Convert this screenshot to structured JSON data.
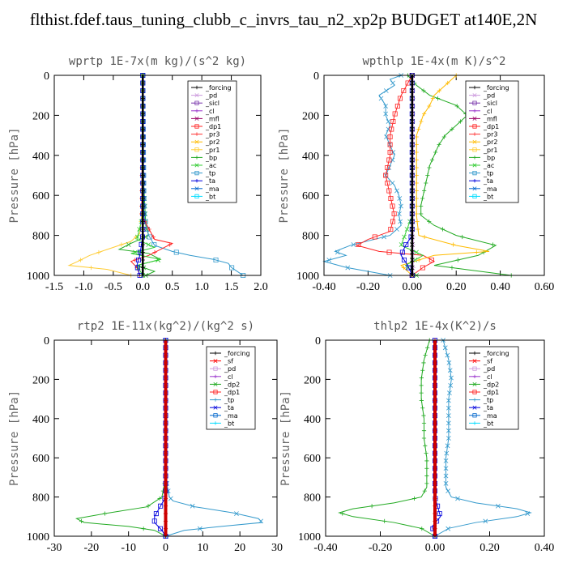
{
  "title": "flthist.fdef.taus_tuning_clubb_c_invrs_tau_n2_xp2p  BUDGET at140E,2N",
  "colors": {
    "forcing": "#000000",
    "sf": "#ff0000",
    "pd": "#cc99dd",
    "sicl": "#7733aa",
    "cl": "#9933cc",
    "mfl": "#990066",
    "dp1": "#ff2222",
    "dp2": "#22aa22",
    "pr3": "#ff3333",
    "pr2": "#ffbb00",
    "pr1": "#ffcc33",
    "bp": "#22aa22",
    "ac": "#33cc33",
    "tp": "#3399cc",
    "ta": "#0000dd",
    "ma": "#0066cc",
    "bt": "#00ddff"
  },
  "chart_data": [
    {
      "type": "line",
      "title": "wprtp  1E-7x(m kg)/(s^2 kg)",
      "ylabel": "Pressure [hPa]",
      "xlim": [
        -1.5,
        2.0
      ],
      "ylim": [
        1000,
        0
      ],
      "xticks": [
        "-1.5",
        "-1.0",
        "-0.5",
        "0.0",
        "0.5",
        "1.0",
        "1.5",
        "2.0"
      ],
      "xtick_values": [
        -1.5,
        -1.0,
        -0.5,
        0.0,
        0.5,
        1.0,
        1.5,
        2.0
      ],
      "yticks": [
        "0",
        "200",
        "400",
        "600",
        "800",
        "1000"
      ],
      "ytick_values": [
        0,
        200,
        400,
        600,
        800,
        1000
      ],
      "legend": [
        "_forcing",
        "_pd",
        "_sicl",
        "_cl",
        "_mfl",
        "_dp1",
        "_pr3",
        "_pr2",
        "_pr1",
        "_bp",
        "_ac",
        "_tp",
        "_ta",
        "_ma",
        "_bt"
      ],
      "series": [
        {
          "name": "_pr1",
          "key": "pr1",
          "p": [
            0,
            400,
            700,
            790,
            830,
            870,
            900,
            930,
            950,
            970,
            1000
          ],
          "v": [
            0,
            0,
            -0.02,
            -0.05,
            -0.2,
            -0.6,
            -0.9,
            -1.1,
            -1.25,
            -0.6,
            -0.2
          ]
        },
        {
          "name": "_bp",
          "key": "bp",
          "p": [
            0,
            500,
            750,
            800,
            840,
            870,
            890,
            920,
            950,
            980,
            1000
          ],
          "v": [
            0,
            0.01,
            0.05,
            0.1,
            -0.2,
            -0.4,
            0.1,
            0.3,
            -0.1,
            0.2,
            0.05
          ]
        },
        {
          "name": "_tp",
          "key": "tp",
          "p": [
            0,
            700,
            800,
            850,
            880,
            900,
            920,
            940,
            960,
            980,
            1000
          ],
          "v": [
            0,
            0.02,
            0.1,
            0.2,
            0.5,
            0.8,
            1.2,
            1.45,
            1.5,
            1.6,
            1.7
          ]
        },
        {
          "name": "_dp1",
          "key": "dp1",
          "p": [
            0,
            700,
            820,
            840,
            870,
            900,
            930,
            960,
            1000
          ],
          "v": [
            0,
            -0.02,
            0.2,
            0.5,
            0.3,
            0.1,
            -0.2,
            -0.1,
            -0.05
          ]
        },
        {
          "name": "_ac",
          "key": "ac",
          "p": [
            0,
            700,
            820,
            860,
            890,
            920,
            950,
            1000
          ],
          "v": [
            0,
            0,
            -0.1,
            0.2,
            -0.2,
            0.3,
            -0.1,
            0
          ]
        },
        {
          "name": "_ta",
          "key": "ta",
          "p": [
            0,
            800,
            900,
            950,
            1000
          ],
          "v": [
            0,
            0,
            -0.05,
            -0.1,
            -0.05
          ]
        },
        {
          "name": "_forcing",
          "key": "forcing",
          "p": [
            0,
            1000
          ],
          "v": [
            0,
            0
          ]
        }
      ]
    },
    {
      "type": "line",
      "title": "wpthlp  1E-4x(m K)/s^2",
      "ylabel": "Pressure [hPa]",
      "xlim": [
        -0.4,
        0.6
      ],
      "ylim": [
        1000,
        0
      ],
      "xticks": [
        "-0.40",
        "-0.20",
        "0.00",
        "0.20",
        "0.40",
        "0.60"
      ],
      "xtick_values": [
        -0.4,
        -0.2,
        0.0,
        0.2,
        0.4,
        0.6
      ],
      "yticks": [
        "0",
        "200",
        "400",
        "600",
        "800",
        "1000"
      ],
      "ytick_values": [
        0,
        200,
        400,
        600,
        800,
        1000
      ],
      "legend": [
        "_forcing",
        "_pd",
        "_sicl",
        "_cl",
        "_mfl",
        "_dp1",
        "_pr3",
        "_pr2",
        "_pr1",
        "_bp",
        "_ac",
        "_tp",
        "_ta",
        "_ma",
        "_bt"
      ],
      "series": [
        {
          "name": "_bp",
          "key": "bp",
          "p": [
            0,
            50,
            100,
            150,
            200,
            250,
            300,
            350,
            400,
            450,
            500,
            550,
            600,
            650,
            700,
            750,
            800,
            850,
            900,
            950,
            1000
          ],
          "v": [
            -0.02,
            0.02,
            0.08,
            0.2,
            0.25,
            0.2,
            0.15,
            0.12,
            0.1,
            0.08,
            0.07,
            0.06,
            0.05,
            0.04,
            0.04,
            0.1,
            0.2,
            0.38,
            0.3,
            0.1,
            0.45
          ]
        },
        {
          "name": "_tp",
          "key": "tp",
          "p": [
            0,
            20,
            50,
            100,
            150,
            200,
            250,
            300,
            350,
            400,
            450,
            500,
            550,
            600,
            650,
            700,
            750,
            800,
            850,
            880,
            900,
            930,
            960,
            1000
          ],
          "v": [
            -0.05,
            -0.1,
            -0.08,
            -0.15,
            -0.12,
            -0.12,
            -0.1,
            -0.12,
            -0.1,
            -0.08,
            -0.1,
            -0.12,
            -0.08,
            -0.06,
            -0.05,
            -0.06,
            -0.05,
            -0.1,
            -0.28,
            -0.35,
            -0.3,
            -0.4,
            -0.3,
            -0.1
          ]
        },
        {
          "name": "_dp1",
          "key": "dp1",
          "p": [
            0,
            100,
            200,
            300,
            400,
            500,
            600,
            700,
            780,
            820,
            850,
            880,
            900,
            930,
            960,
            1000
          ],
          "v": [
            0,
            -0.05,
            -0.08,
            -0.1,
            -0.1,
            -0.12,
            -0.1,
            -0.08,
            -0.1,
            -0.2,
            -0.25,
            -0.15,
            0.05,
            0.1,
            0.05,
            0
          ]
        },
        {
          "name": "_pr2",
          "key": "pr2",
          "p": [
            0,
            50,
            100,
            150,
            200,
            300,
            500,
            700,
            800,
            850,
            880,
            900,
            950,
            1000
          ],
          "v": [
            0.2,
            0.15,
            0.1,
            0.08,
            0.05,
            0.02,
            0.02,
            0.02,
            0.03,
            0.2,
            0.35,
            0.1,
            -0.05,
            0
          ]
        },
        {
          "name": "_ac",
          "key": "ac",
          "p": [
            0,
            700,
            850,
            900,
            950,
            1000
          ],
          "v": [
            0,
            0,
            -0.05,
            0.05,
            -0.03,
            0.02
          ]
        },
        {
          "name": "_ta",
          "key": "ta",
          "p": [
            0,
            800,
            850,
            900,
            950,
            1000
          ],
          "v": [
            0,
            0,
            -0.03,
            -0.05,
            -0.02,
            0
          ]
        },
        {
          "name": "_pd",
          "key": "pd",
          "p": [
            0,
            1000
          ],
          "v": [
            0.005,
            0.005
          ]
        },
        {
          "name": "_forcing",
          "key": "forcing",
          "p": [
            0,
            1000
          ],
          "v": [
            0,
            0
          ]
        }
      ]
    },
    {
      "type": "line",
      "title": "rtp2  1E-11x(kg^2)/(kg^2 s)",
      "ylabel": "Pressure [hPa]",
      "xlim": [
        -30,
        30
      ],
      "ylim": [
        1000,
        0
      ],
      "xticks": [
        "-30",
        "-20",
        "-10",
        "0",
        "10",
        "20",
        "30"
      ],
      "xtick_values": [
        -30,
        -20,
        -10,
        0,
        10,
        20,
        30
      ],
      "yticks": [
        "0",
        "200",
        "400",
        "600",
        "800",
        "1000"
      ],
      "ytick_values": [
        0,
        200,
        400,
        600,
        800,
        1000
      ],
      "legend": [
        "_forcing",
        "_sf",
        "_pd",
        "_cl",
        "_dp2",
        "_dp1",
        "_tp",
        "_ta",
        "_ma",
        "_bt"
      ],
      "series": [
        {
          "name": "_dp2",
          "key": "dp2",
          "p": [
            0,
            700,
            800,
            850,
            880,
            910,
            930,
            950,
            970,
            1000
          ],
          "v": [
            0,
            0,
            -1,
            -5,
            -15,
            -24,
            -22,
            -10,
            -3,
            0
          ]
        },
        {
          "name": "_tp",
          "key": "tp",
          "p": [
            0,
            700,
            800,
            820,
            850,
            880,
            910,
            930,
            950,
            970,
            1000
          ],
          "v": [
            0,
            0,
            1,
            2,
            8,
            18,
            25,
            26,
            15,
            5,
            0
          ]
        },
        {
          "name": "_ta",
          "key": "ta",
          "p": [
            0,
            800,
            900,
            930,
            950,
            970,
            1000
          ],
          "v": [
            0,
            0,
            -3,
            -3,
            -2,
            -1,
            0
          ]
        },
        {
          "name": "_forcing",
          "key": "forcing",
          "p": [
            0,
            1000
          ],
          "v": [
            0,
            0
          ]
        }
      ]
    },
    {
      "type": "line",
      "title": "thlp2  1E-4x(K^2)/s",
      "ylabel": "Pressure [hPa]",
      "xlim": [
        -0.4,
        0.4
      ],
      "ylim": [
        1000,
        0
      ],
      "xticks": [
        "-0.40",
        "-0.20",
        "0.00",
        "0.20",
        "0.40"
      ],
      "xtick_values": [
        -0.4,
        -0.2,
        0.0,
        0.2,
        0.4
      ],
      "yticks": [
        "0",
        "200",
        "400",
        "600",
        "800",
        "1000"
      ],
      "ytick_values": [
        0,
        200,
        400,
        600,
        800,
        1000
      ],
      "legend": [
        "_forcing",
        "_sf",
        "_pd",
        "_cl",
        "_dp2",
        "_dp1",
        "_tp",
        "_ta",
        "_ma",
        "_bt"
      ],
      "series": [
        {
          "name": "_dp2",
          "key": "dp2",
          "p": [
            0,
            50,
            100,
            200,
            300,
            400,
            500,
            600,
            700,
            750,
            800,
            830,
            860,
            880,
            900,
            930,
            960,
            1000
          ],
          "v": [
            -0.02,
            -0.03,
            -0.04,
            -0.05,
            -0.05,
            -0.04,
            -0.04,
            -0.03,
            -0.03,
            -0.03,
            -0.05,
            -0.15,
            -0.3,
            -0.35,
            -0.3,
            -0.15,
            -0.05,
            0
          ]
        },
        {
          "name": "_tp",
          "key": "tp",
          "p": [
            0,
            50,
            100,
            200,
            300,
            400,
            500,
            600,
            700,
            750,
            800,
            830,
            860,
            880,
            900,
            930,
            960,
            1000
          ],
          "v": [
            0.03,
            0.04,
            0.05,
            0.06,
            0.05,
            0.05,
            0.05,
            0.04,
            0.04,
            0.04,
            0.06,
            0.15,
            0.3,
            0.35,
            0.3,
            0.15,
            0.05,
            0
          ]
        },
        {
          "name": "_ta",
          "key": "ta",
          "p": [
            0,
            800,
            850,
            900,
            950,
            1000
          ],
          "v": [
            0,
            0,
            0.01,
            0.02,
            -0.01,
            0
          ]
        },
        {
          "name": "_forcing",
          "key": "forcing",
          "p": [
            0,
            1000
          ],
          "v": [
            0,
            0
          ]
        }
      ]
    }
  ]
}
